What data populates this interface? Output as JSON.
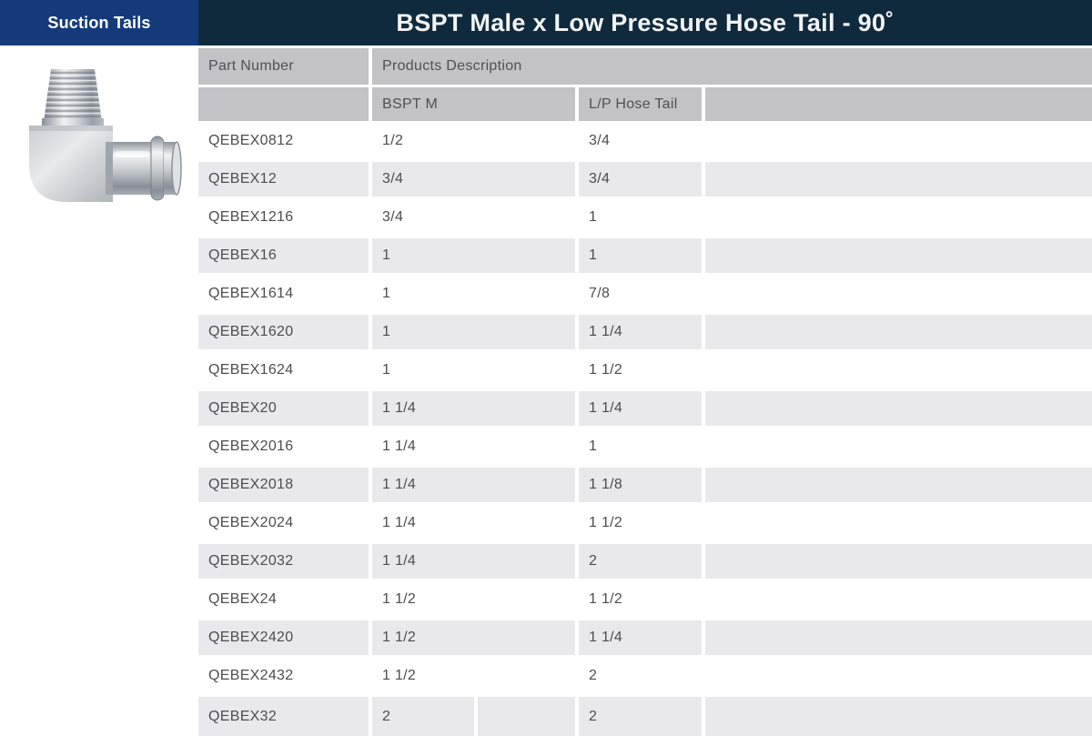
{
  "tab": {
    "label": "Suction Tails"
  },
  "header": {
    "title": "BSPT Male x Low Pressure Hose Tail - 90˚"
  },
  "product_image": {
    "icon": "elbow-fitting-photo"
  },
  "table": {
    "headers": {
      "part_number": "Part Number",
      "products_description": "Products Description",
      "bspt_m": "BSPT M",
      "lp_hose_tail": "L/P Hose Tail"
    },
    "rows": [
      {
        "part": "QEBEX0812",
        "bspt": "1/2",
        "tail": "3/4"
      },
      {
        "part": "QEBEX12",
        "bspt": "3/4",
        "tail": "3/4"
      },
      {
        "part": "QEBEX1216",
        "bspt": "3/4",
        "tail": "1"
      },
      {
        "part": "QEBEX16",
        "bspt": "1",
        "tail": "1"
      },
      {
        "part": "QEBEX1614",
        "bspt": "1",
        "tail": "7/8"
      },
      {
        "part": "QEBEX1620",
        "bspt": "1",
        "tail": "1 1/4"
      },
      {
        "part": "QEBEX1624",
        "bspt": "1",
        "tail": "1 1/2"
      },
      {
        "part": "QEBEX20",
        "bspt": "1 1/4",
        "tail": "1 1/4"
      },
      {
        "part": "QEBEX2016",
        "bspt": "1 1/4",
        "tail": "1"
      },
      {
        "part": "QEBEX2018",
        "bspt": "1 1/4",
        "tail": "1 1/8"
      },
      {
        "part": "QEBEX2024",
        "bspt": "1 1/4",
        "tail": "1 1/2"
      },
      {
        "part": "QEBEX2032",
        "bspt": "1 1/4",
        "tail": "2"
      },
      {
        "part": "QEBEX24",
        "bspt": "1 1/2",
        "tail": "1 1/2"
      },
      {
        "part": "QEBEX2420",
        "bspt": "1 1/2",
        "tail": "1 1/4"
      },
      {
        "part": "QEBEX2432",
        "bspt": "1 1/2",
        "tail": "2"
      },
      {
        "part": "QEBEX32",
        "bspt": "2",
        "tail": "2",
        "split": true
      }
    ]
  },
  "colors": {
    "tab_blue": "#143a7c",
    "header_dark": "#0f2a3c",
    "header_gray": "#c3c3c5",
    "row_gray": "#e9e9eb",
    "text_gray": "#4d4d4f"
  }
}
